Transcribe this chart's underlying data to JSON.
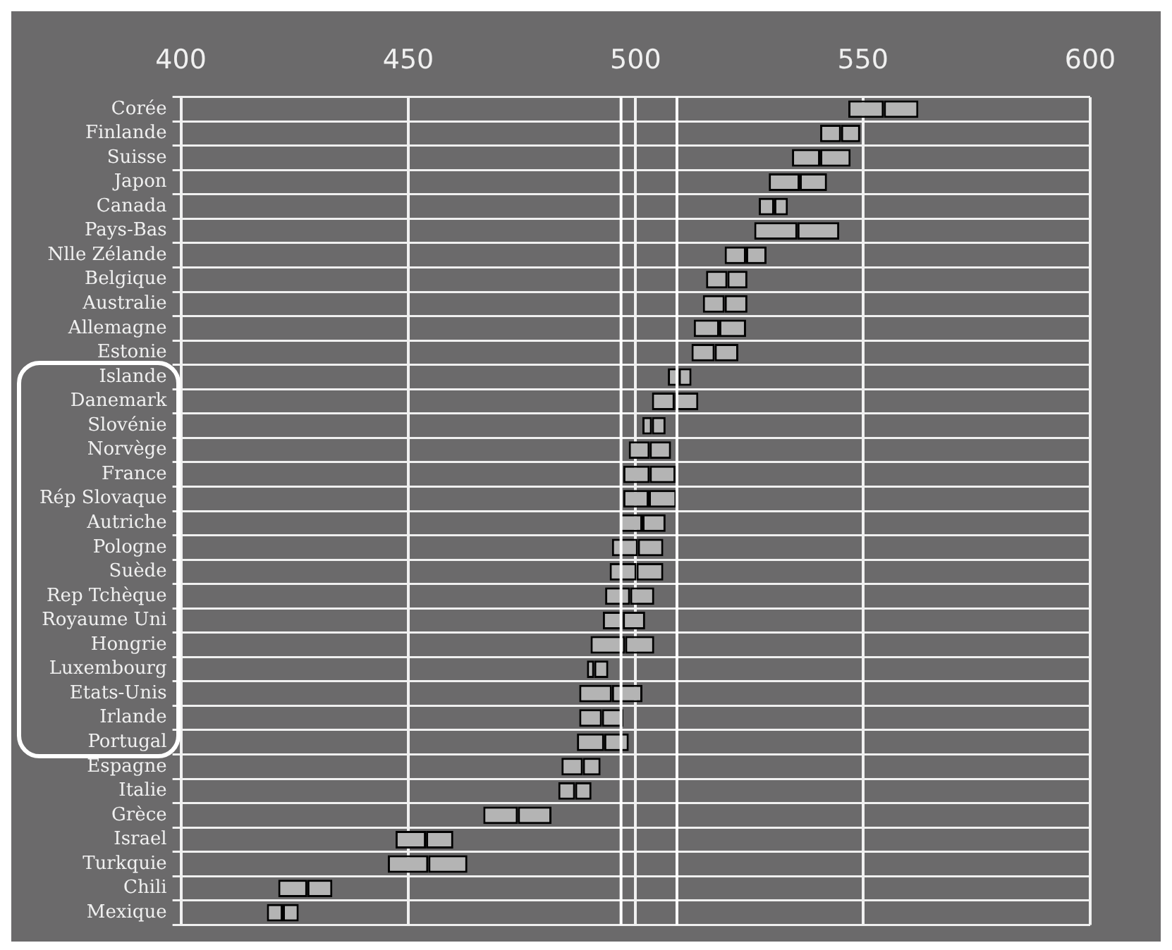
{
  "chart_data": {
    "type": "bar",
    "orientation": "horizontal",
    "categories": [
      "Corée",
      "Finlande",
      "Suisse",
      "Japon",
      "Canada",
      "Pays-Bas",
      "Nlle Zélande",
      "Belgique",
      "Australie",
      "Allemagne",
      "Estonie",
      "Islande",
      "Danemark",
      "Slovénie",
      "Norvège",
      "France",
      "Rép Slovaque",
      "Autriche",
      "Pologne",
      "Suède",
      "Rep Tchèque",
      "Royaume Uni",
      "Hongrie",
      "Luxembourg",
      "Etats-Unis",
      "Irlande",
      "Portugal",
      "Espagne",
      "Italie",
      "Grèce",
      "Israel",
      "Turkquie",
      "Chili",
      "Mexique"
    ],
    "series": [
      {
        "color": "#b4b4b4",
        "base": [
          546.8,
          540.6,
          534.4,
          529.3,
          527.1,
          526.1,
          519.6,
          515.5,
          514.8,
          512.8,
          512.3,
          507.1,
          503.6,
          501.5,
          498.5,
          497.3,
          497.3,
          496.5,
          494.8,
          494.3,
          493.3,
          492.8,
          490.1,
          489.3,
          487.6,
          487.6,
          487.1,
          483.7,
          483.0,
          466.5,
          447.2,
          445.5,
          421.4,
          418.9
        ],
        "values": [
          7.8,
          4.6,
          6.2,
          6.8,
          3.4,
          9.5,
          4.7,
          4.7,
          4.8,
          5.6,
          5.1,
          2.4,
          5.0,
          2.1,
          4.6,
          5.8,
          5.6,
          5.0,
          5.7,
          5.9,
          5.5,
          4.4,
          7.6,
          1.6,
          7.2,
          5.0,
          6.0,
          4.7,
          3.7,
          7.6,
          6.7,
          8.9,
          6.4,
          3.5
        ]
      },
      {
        "color": "#b4b4b4",
        "base": [
          554.6,
          545.2,
          540.6,
          536.1,
          530.5,
          535.6,
          524.3,
          520.2,
          519.6,
          518.4,
          517.4,
          509.5,
          508.6,
          503.6,
          503.1,
          503.1,
          502.9,
          501.5,
          500.5,
          500.2,
          498.8,
          497.2,
          497.7,
          490.9,
          494.8,
          492.6,
          493.1,
          488.4,
          486.7,
          474.1,
          453.9,
          454.4,
          427.8,
          422.4
        ],
        "values": [
          7.6,
          4.2,
          6.7,
          6.0,
          3.0,
          9.2,
          4.5,
          4.4,
          5.0,
          5.9,
          5.2,
          2.8,
          5.2,
          3.0,
          4.7,
          5.7,
          6.1,
          5.1,
          5.6,
          5.9,
          5.3,
          4.9,
          6.4,
          3.1,
          6.7,
          4.7,
          5.4,
          3.9,
          3.6,
          7.4,
          6.0,
          8.6,
          5.5,
          3.5
        ]
      }
    ],
    "xlim": [
      400,
      600
    ],
    "xticks": [
      400,
      450,
      500,
      550,
      600
    ],
    "ref_lines": [
      {
        "axis": "x",
        "value": 496.8,
        "color": "#ffffff"
      },
      {
        "axis": "x",
        "value": 509.1,
        "color": "#ffffff"
      }
    ],
    "grid": true,
    "legend": false
  }
}
